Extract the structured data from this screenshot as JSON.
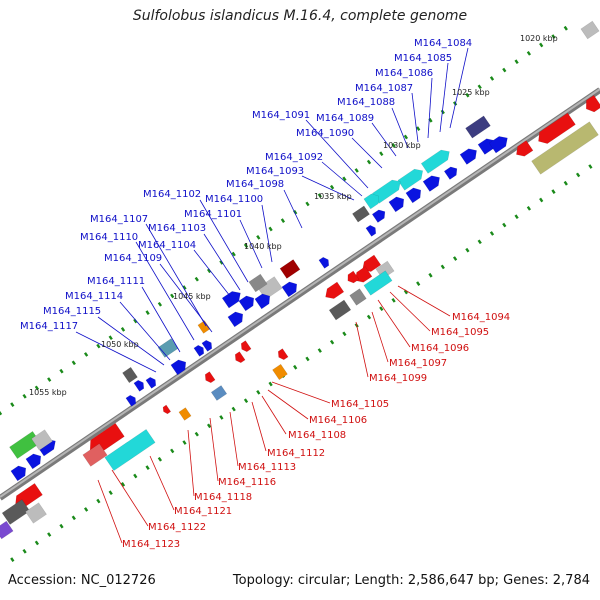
{
  "title": "Sulfolobus islandicus M.16.4, complete genome",
  "footer": {
    "accession": "Accession: NC_012726",
    "summary": "Topology: circular; Length: 2,586,647 bp; Genes: 2,784"
  },
  "scale_labels": [
    "1020 kbp",
    "1025 kbp",
    "1030 kbp",
    "1035 kbp",
    "1040 kbp",
    "1045 kbp",
    "1050 kbp",
    "1055 kbp"
  ],
  "top_strand_labels": [
    "M164_1084",
    "M164_1085",
    "M164_1086",
    "M164_1087",
    "M164_1088",
    "M164_1089",
    "M164_1090",
    "M164_1091",
    "M164_1092",
    "M164_1093",
    "M164_1098",
    "M164_1100",
    "M164_1101",
    "M164_1102",
    "M164_1103",
    "M164_1104",
    "M164_1107",
    "M164_1109",
    "M164_1110",
    "M164_1111",
    "M164_1114",
    "M164_1115",
    "M164_1117"
  ],
  "bottom_strand_labels": [
    "M164_1094",
    "M164_1095",
    "M164_1096",
    "M164_1097",
    "M164_1099",
    "M164_1105",
    "M164_1106",
    "M164_1108",
    "M164_1112",
    "M164_1113",
    "M164_1116",
    "M164_1118",
    "M164_1121",
    "M164_1122",
    "M164_1123"
  ],
  "colors": {
    "top_strand_cds": "#0a14e0",
    "bottom_strand_cds": "#e81010",
    "backbone": "#808080",
    "tick_marks": "#1a8a1a",
    "top_label": "#1010c8",
    "bottom_label": "#d01010"
  }
}
